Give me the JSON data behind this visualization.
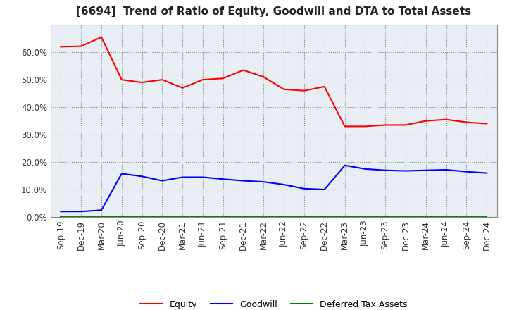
{
  "title": "[6694]  Trend of Ratio of Equity, Goodwill and DTA to Total Assets",
  "x_labels": [
    "Sep-19",
    "Dec-19",
    "Mar-20",
    "Jun-20",
    "Sep-20",
    "Dec-20",
    "Mar-21",
    "Jun-21",
    "Sep-21",
    "Dec-21",
    "Mar-22",
    "Jun-22",
    "Sep-22",
    "Dec-22",
    "Mar-23",
    "Jun-23",
    "Sep-23",
    "Dec-23",
    "Mar-24",
    "Jun-24",
    "Sep-24",
    "Dec-24"
  ],
  "equity": [
    0.62,
    0.622,
    0.655,
    0.5,
    0.49,
    0.5,
    0.47,
    0.5,
    0.505,
    0.535,
    0.51,
    0.465,
    0.46,
    0.475,
    0.33,
    0.33,
    0.335,
    0.335,
    0.35,
    0.355,
    0.345,
    0.34
  ],
  "goodwill": [
    0.02,
    0.02,
    0.025,
    0.158,
    0.148,
    0.132,
    0.145,
    0.145,
    0.138,
    0.132,
    0.128,
    0.118,
    0.103,
    0.1,
    0.188,
    0.175,
    0.17,
    0.168,
    0.17,
    0.172,
    0.165,
    0.16
  ],
  "dta": [
    0.001,
    0.001,
    0.001,
    0.001,
    0.001,
    0.001,
    0.001,
    0.001,
    0.001,
    0.001,
    0.001,
    0.001,
    0.001,
    0.001,
    0.001,
    0.001,
    0.001,
    0.001,
    0.001,
    0.001,
    0.001,
    0.001
  ],
  "equity_color": "#FF0000",
  "goodwill_color": "#0000FF",
  "dta_color": "#008000",
  "bg_color": "#FFFFFF",
  "plot_bg_color": "#E8EEF4",
  "grid_color": "#AAAAAA",
  "ylim": [
    0.0,
    0.7
  ],
  "yticks": [
    0.0,
    0.1,
    0.2,
    0.3,
    0.4,
    0.5,
    0.6
  ]
}
